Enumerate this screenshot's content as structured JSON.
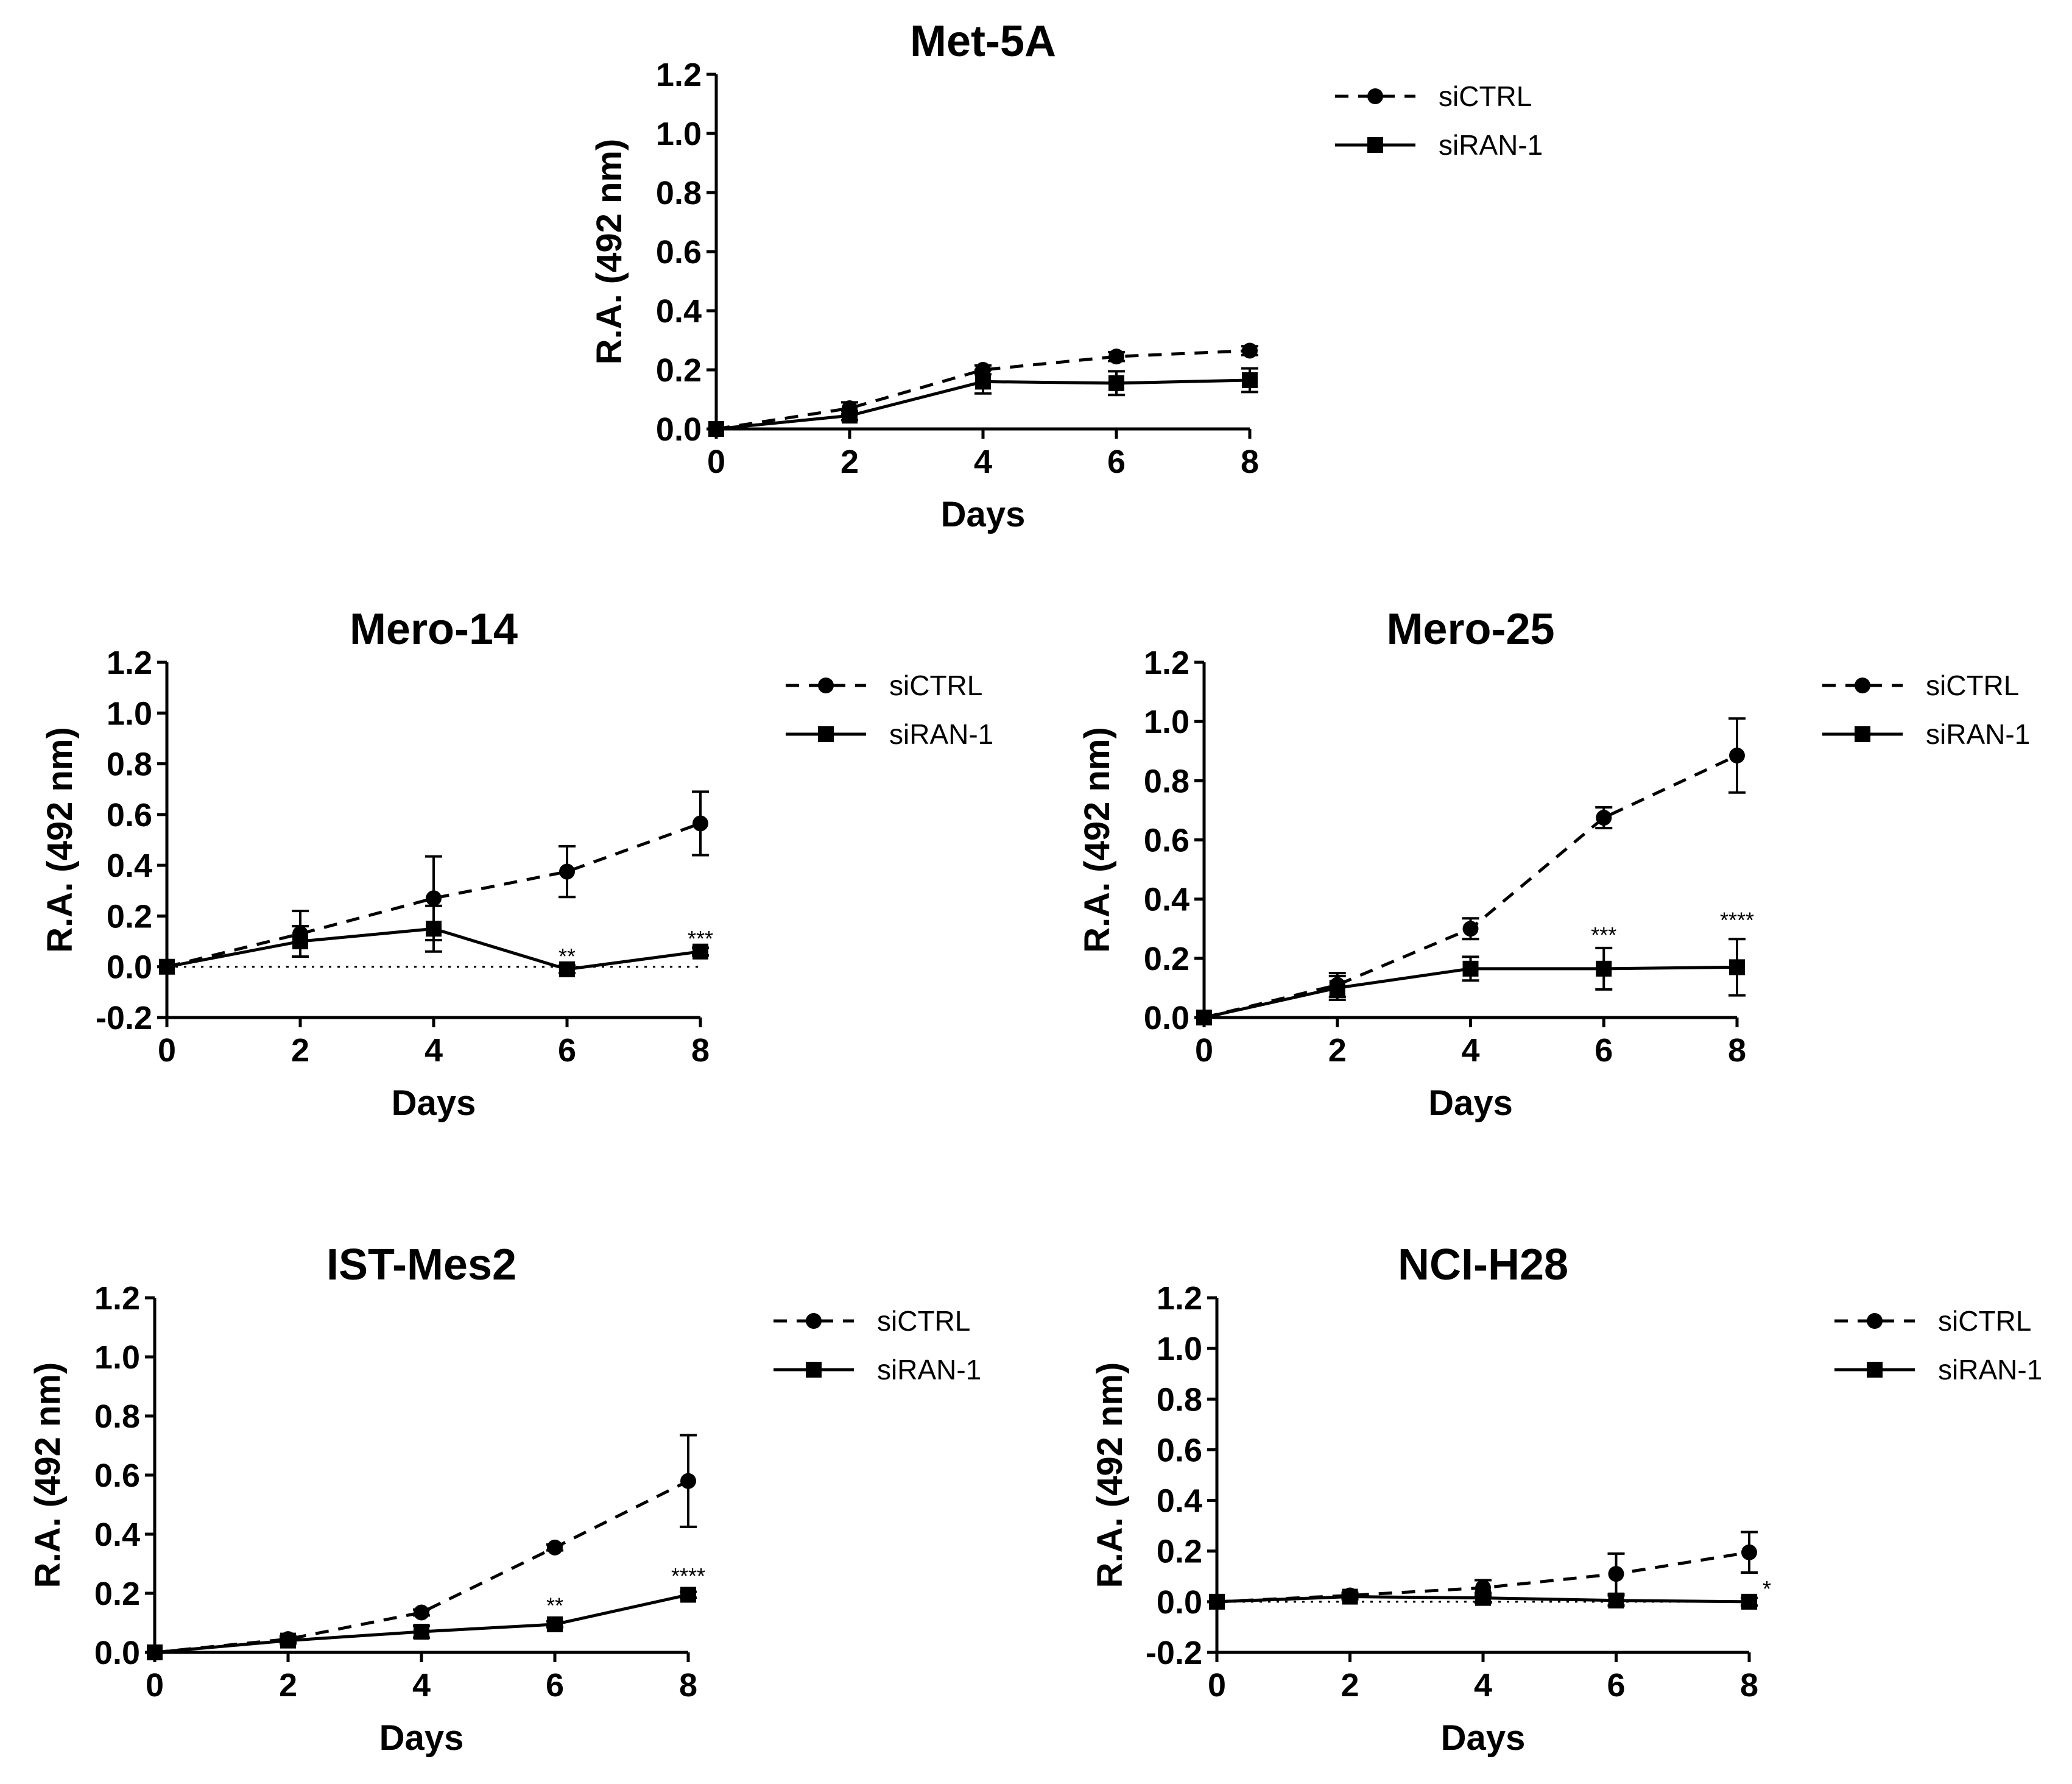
{
  "chart_data": [
    {
      "type": "line",
      "title": "Met-5A",
      "xlabel": "Days",
      "ylabel": "R.A. (492 nm)",
      "x": [
        0,
        2,
        4,
        6,
        8
      ],
      "xticks": [
        "0",
        "2",
        "4",
        "6",
        "8"
      ],
      "ylim": [
        0.0,
        1.2
      ],
      "yticks": [
        "0.0",
        "0.2",
        "0.4",
        "0.6",
        "0.8",
        "1.0",
        "1.2"
      ],
      "zero_line": false,
      "legend_position": "top-right",
      "series": [
        {
          "name": "siCTRL",
          "style": "dashed",
          "marker": "circle",
          "values": [
            0.0,
            0.07,
            0.2,
            0.245,
            0.265
          ],
          "errors": [
            0.0,
            0.02,
            0.015,
            0.015,
            0.015
          ]
        },
        {
          "name": "siRAN-1",
          "style": "solid",
          "marker": "square",
          "values": [
            0.0,
            0.045,
            0.16,
            0.155,
            0.165
          ],
          "errors": [
            0.0,
            0.015,
            0.04,
            0.04,
            0.04
          ]
        }
      ],
      "annotations": []
    },
    {
      "type": "line",
      "title": "Mero-14",
      "xlabel": "Days",
      "ylabel": "R.A. (492 nm)",
      "x": [
        0,
        2,
        4,
        6,
        8
      ],
      "xticks": [
        "0",
        "2",
        "4",
        "6",
        "8"
      ],
      "ylim": [
        -0.2,
        1.2
      ],
      "yticks": [
        "-0.2",
        "0.0",
        "0.2",
        "0.4",
        "0.6",
        "0.8",
        "1.0",
        "1.2"
      ],
      "zero_line": true,
      "legend_position": "top-right",
      "series": [
        {
          "name": "siCTRL",
          "style": "dashed",
          "marker": "circle",
          "values": [
            0.0,
            0.13,
            0.27,
            0.375,
            0.565
          ],
          "errors": [
            0.0,
            0.09,
            0.165,
            0.1,
            0.125
          ]
        },
        {
          "name": "siRAN-1",
          "style": "solid",
          "marker": "square",
          "values": [
            0.0,
            0.1,
            0.15,
            -0.01,
            0.06
          ],
          "errors": [
            0.0,
            0.06,
            0.09,
            0.015,
            0.015
          ]
        }
      ],
      "annotations": [
        {
          "x": 6,
          "y": 0.03,
          "text": "**"
        },
        {
          "x": 8,
          "y": 0.1,
          "text": "***"
        }
      ]
    },
    {
      "type": "line",
      "title": "Mero-25",
      "xlabel": "Days",
      "ylabel": "R.A. (492 nm)",
      "x": [
        0,
        2,
        4,
        6,
        8
      ],
      "xticks": [
        "0",
        "2",
        "4",
        "6",
        "8"
      ],
      "ylim": [
        0.0,
        1.2
      ],
      "yticks": [
        "0.0",
        "0.2",
        "0.4",
        "0.6",
        "0.8",
        "1.0",
        "1.2"
      ],
      "zero_line": false,
      "legend_position": "top-right",
      "series": [
        {
          "name": "siCTRL",
          "style": "dashed",
          "marker": "circle",
          "values": [
            0.0,
            0.11,
            0.3,
            0.675,
            0.885
          ],
          "errors": [
            0.0,
            0.04,
            0.035,
            0.035,
            0.125
          ]
        },
        {
          "name": "siRAN-1",
          "style": "solid",
          "marker": "square",
          "values": [
            0.0,
            0.1,
            0.165,
            0.165,
            0.17
          ],
          "errors": [
            0.0,
            0.04,
            0.04,
            0.07,
            0.095
          ]
        }
      ],
      "annotations": [
        {
          "x": 6,
          "y": 0.27,
          "text": "***"
        },
        {
          "x": 8,
          "y": 0.32,
          "text": "****"
        }
      ]
    },
    {
      "type": "line",
      "title": "IST-Mes2",
      "xlabel": "Days",
      "ylabel": "R.A. (492 nm)",
      "x": [
        0,
        2,
        4,
        6,
        8
      ],
      "xticks": [
        "0",
        "2",
        "4",
        "6",
        "8"
      ],
      "ylim": [
        0.0,
        1.2
      ],
      "yticks": [
        "0.0",
        "0.2",
        "0.4",
        "0.6",
        "0.8",
        "1.0",
        "1.2"
      ],
      "zero_line": false,
      "legend_position": "top-right",
      "series": [
        {
          "name": "siCTRL",
          "style": "dashed",
          "marker": "circle",
          "values": [
            0.0,
            0.045,
            0.135,
            0.355,
            0.58
          ],
          "errors": [
            0.0,
            0.01,
            0.01,
            0.01,
            0.155
          ]
        },
        {
          "name": "siRAN-1",
          "style": "solid",
          "marker": "square",
          "values": [
            0.0,
            0.04,
            0.07,
            0.095,
            0.195
          ],
          "errors": [
            0.0,
            0.01,
            0.02,
            0.01,
            0.01
          ]
        }
      ],
      "annotations": [
        {
          "x": 6,
          "y": 0.15,
          "text": "**"
        },
        {
          "x": 8,
          "y": 0.25,
          "text": "****"
        }
      ]
    },
    {
      "type": "line",
      "title": "NCI-H28",
      "xlabel": "Days",
      "ylabel": "R.A. (492 nm)",
      "x": [
        0,
        2,
        4,
        6,
        8
      ],
      "xticks": [
        "0",
        "2",
        "4",
        "6",
        "8"
      ],
      "ylim": [
        -0.2,
        1.2
      ],
      "yticks": [
        "-0.2",
        "0.0",
        "0.2",
        "0.4",
        "0.6",
        "0.8",
        "1.0",
        "1.2"
      ],
      "zero_line": true,
      "legend_position": "top-right",
      "series": [
        {
          "name": "siCTRL",
          "style": "dashed",
          "marker": "circle",
          "values": [
            0.0,
            0.025,
            0.055,
            0.11,
            0.195
          ],
          "errors": [
            0.0,
            0.01,
            0.03,
            0.08,
            0.08
          ]
        },
        {
          "name": "siRAN-1",
          "style": "solid",
          "marker": "square",
          "values": [
            0.0,
            0.02,
            0.015,
            0.005,
            0.0
          ],
          "errors": [
            0.0,
            0.01,
            0.02,
            0.02,
            0.015
          ]
        }
      ],
      "annotations": [
        {
          "x": 8,
          "y": 0.04,
          "text": "*",
          "offset": "right"
        }
      ]
    }
  ]
}
